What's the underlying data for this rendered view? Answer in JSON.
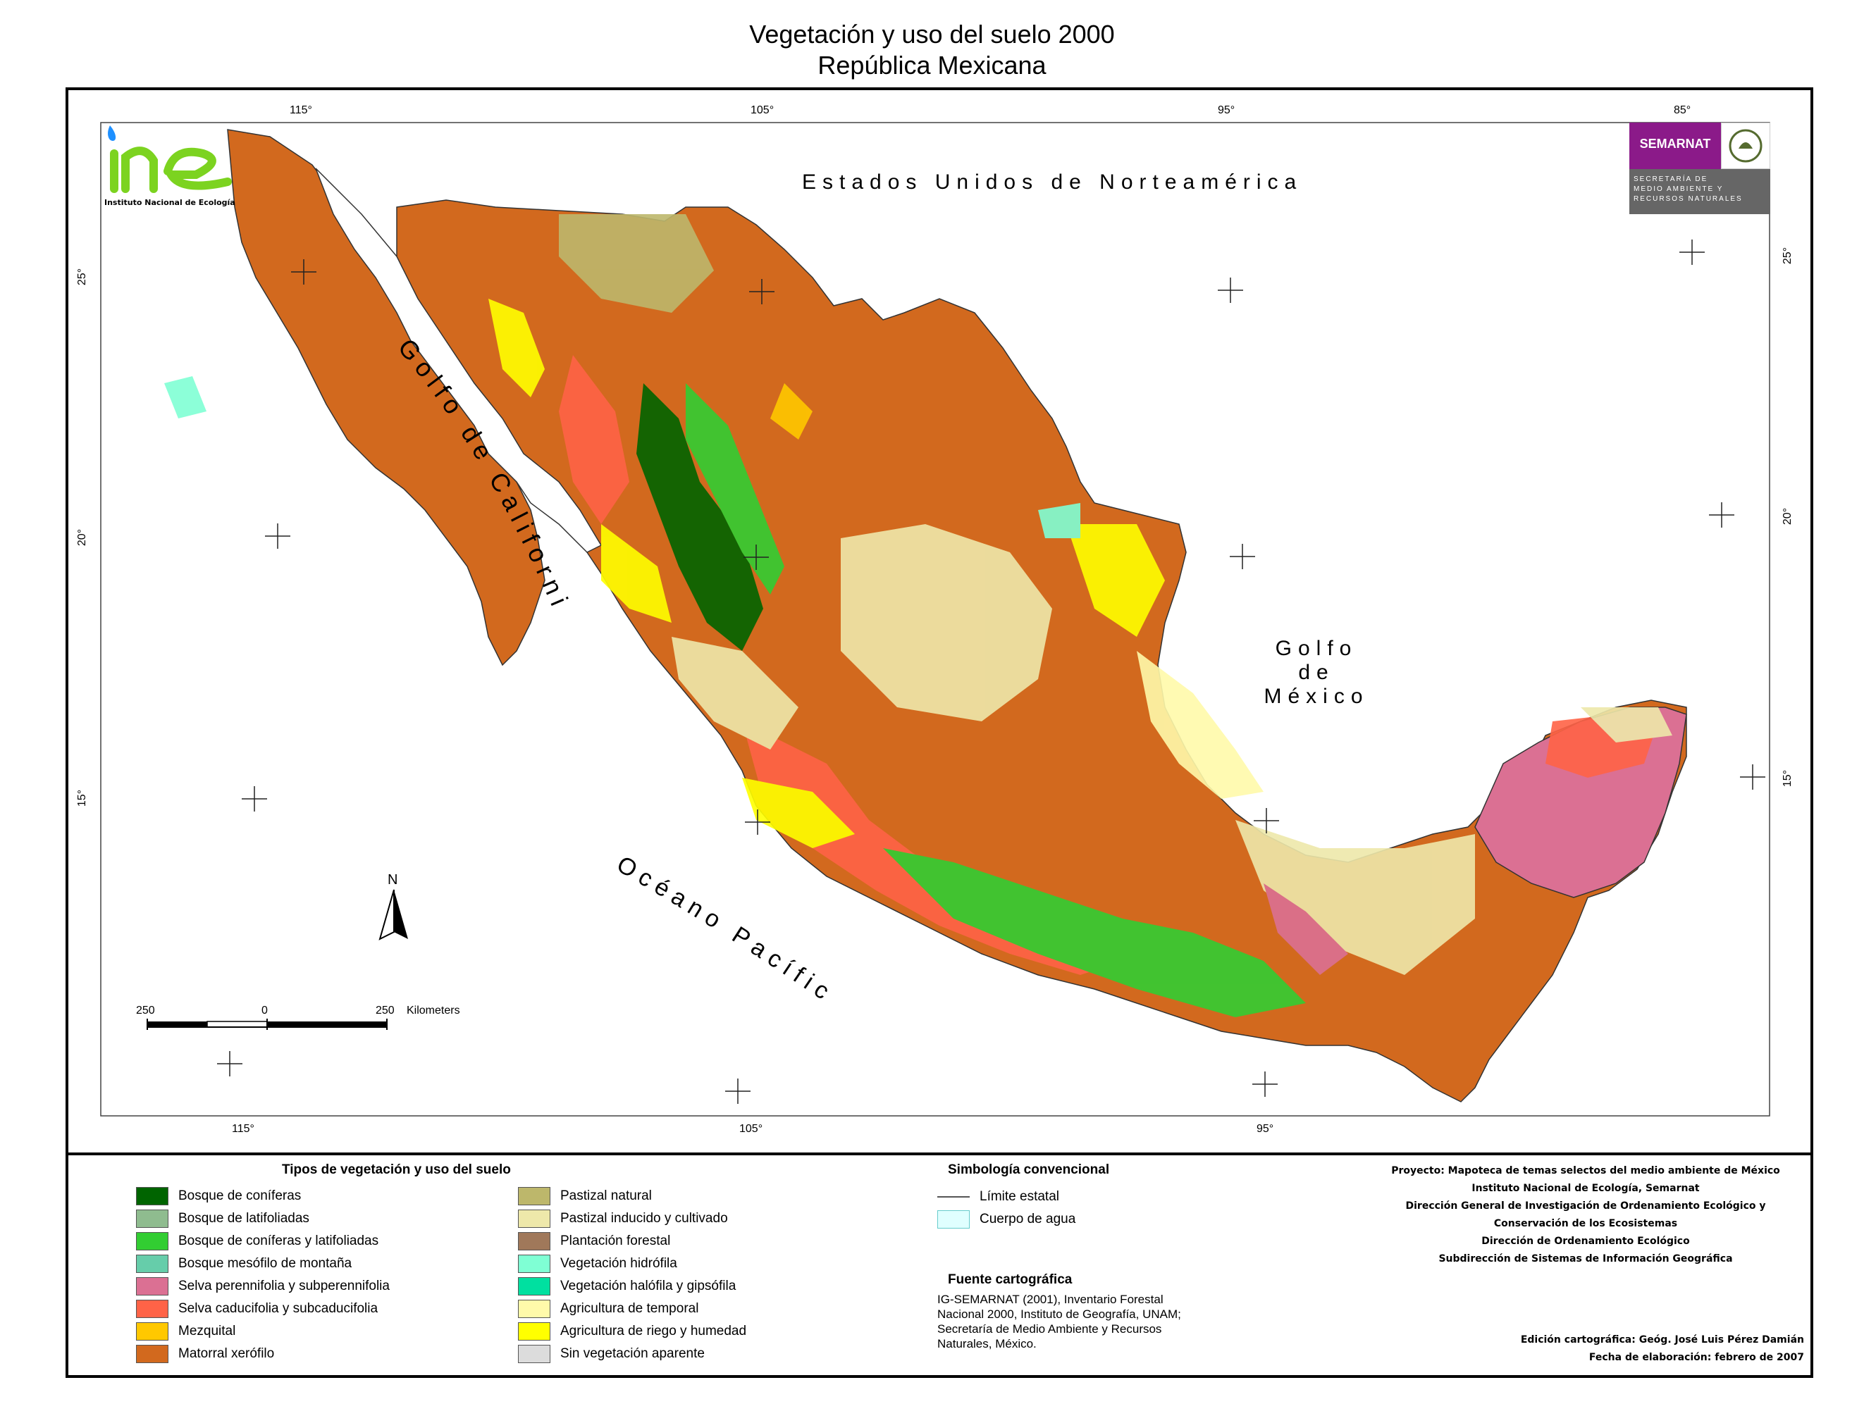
{
  "title": {
    "line1": "Vegetación y uso del suelo 2000",
    "line2": "República Mexicana"
  },
  "coordinates": {
    "top": [
      "115°",
      "105°",
      "95°",
      "85°"
    ],
    "bottom": [
      "115°",
      "105°",
      "95°"
    ],
    "left": [
      "25°",
      "20°",
      "15°"
    ],
    "right": [
      "25°",
      "20°",
      "15°"
    ]
  },
  "labels": {
    "usa": "Estados Unidos de Norteamérica",
    "gulf_california": "Golfo de California",
    "gulf_mexico": [
      "Golfo",
      "de",
      "México"
    ],
    "pacific": "Océano Pacífico",
    "north": "N",
    "scale": {
      "left": "250",
      "mid": "0",
      "right": "250",
      "unit": "Kilometers"
    }
  },
  "logos": {
    "ine_text": "Instituto Nacional de Ecología",
    "semarnat_name": "SEMARNAT",
    "semarnat_sub": [
      "SECRETARÍA DE",
      "MEDIO AMBIENTE Y",
      "RECURSOS NATURALES"
    ]
  },
  "legend": {
    "heading": "Tipos de vegetación y uso del suelo",
    "left_items": [
      {
        "label": "Bosque de coníferas",
        "color": "#006400"
      },
      {
        "label": "Bosque de latifoliadas",
        "color": "#8fbc8f"
      },
      {
        "label": "Bosque de coníferas y latifoliadas",
        "color": "#32cd32"
      },
      {
        "label": "Bosque mesófilo de montaña",
        "color": "#66cdaa"
      },
      {
        "label": "Selva perennifolia y subperennifolia",
        "color": "#db7093"
      },
      {
        "label": "Selva caducifolia y subcaducifolia",
        "color": "#ff6347"
      },
      {
        "label": "Mezquital",
        "color": "#ffc800"
      },
      {
        "label": "Matorral xerófilo",
        "color": "#d2691e"
      }
    ],
    "right_items": [
      {
        "label": "Pastizal natural",
        "color": "#bdb76b"
      },
      {
        "label": "Pastizal inducido y cultivado",
        "color": "#eee8aa"
      },
      {
        "label": "Plantación forestal",
        "color": "#a0785a"
      },
      {
        "label": "Vegetación hidrófila",
        "color": "#7fffd4"
      },
      {
        "label": "Vegetación halófila y gipsófila",
        "color": "#00e0a0"
      },
      {
        "label": "Agricultura de temporal",
        "color": "#fffaaa"
      },
      {
        "label": "Agricultura de riego y humedad",
        "color": "#ffff00"
      },
      {
        "label": "Sin vegetación aparente",
        "color": "#dcdcdc"
      }
    ]
  },
  "simbologia": {
    "heading": "Simbología convencional",
    "items": [
      {
        "label": "Límite estatal",
        "type": "line"
      },
      {
        "label": "Cuerpo de agua",
        "type": "fill",
        "color": "#e0ffff"
      }
    ]
  },
  "fuente": {
    "heading": "Fuente cartográfica",
    "lines": [
      "IG-SEMARNAT (2001), Inventario Forestal",
      "Nacional 2000, Instituto de Geografía, UNAM;",
      "Secretaría de Medio Ambiente y Recursos",
      "Naturales, México."
    ]
  },
  "proyecto": [
    "Proyecto: Mapoteca de temas selectos del medio ambiente de México",
    "Instituto Nacional de Ecología, Semarnat",
    "Dirección General de Investigación de Ordenamiento Ecológico y",
    "Conservación de los Ecosistemas",
    "Dirección de Ordenamiento Ecológico",
    "Subdirección de Sistemas de Información Geográfica"
  ],
  "edicion": [
    "Edición cartográfica: Geóg. José Luis Pérez Damián",
    "Fecha de elaboración: febrero de 2007"
  ]
}
